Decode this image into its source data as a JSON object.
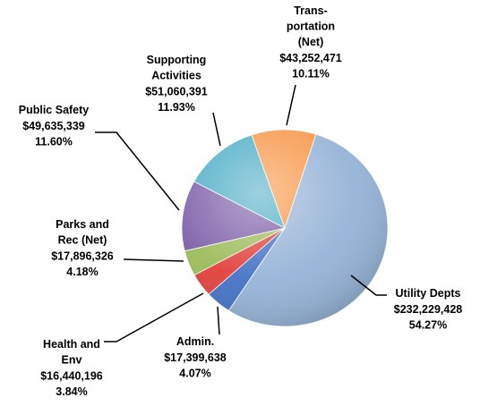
{
  "chart_data": {
    "type": "pie",
    "categories": [
      "Utility Depts",
      "Admin.",
      "Health and\nEnv",
      "Parks and\nRec (Net)",
      "Public Safety",
      "Supporting\nActivities",
      "Trans-\nportation\n(Net)"
    ],
    "values": [
      232229428,
      17399638,
      16440196,
      17896326,
      49635339,
      51060391,
      43252471
    ],
    "value_labels": [
      "$232,229,428",
      "$17,399,638",
      "$16,440,196",
      "$17,896,326",
      "$49,635,339",
      "$51,060,391",
      "$43,252,471"
    ],
    "percentages": [
      54.27,
      4.07,
      3.84,
      4.18,
      11.6,
      11.93,
      10.11
    ],
    "percentage_labels": [
      "54.27%",
      "4.07%",
      "3.84%",
      "4.18%",
      "11.60%",
      "11.93%",
      "10.11%"
    ],
    "colors": [
      "#95b3d7",
      "#4472c4",
      "#e0403c",
      "#9bbb59",
      "#7c5fa8",
      "#4bacc6",
      "#f79646"
    ]
  }
}
